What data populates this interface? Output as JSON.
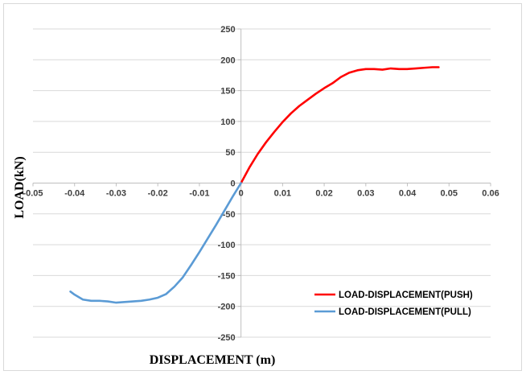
{
  "chart_data": {
    "type": "line",
    "title": "",
    "xlabel": "DISPLACEMENT (m)",
    "ylabel": "LOAD(kN)",
    "xlim": [
      -0.05,
      0.06
    ],
    "ylim": [
      -250,
      250
    ],
    "x_ticks": [
      -0.05,
      -0.04,
      -0.03,
      -0.02,
      -0.01,
      0,
      0.01,
      0.02,
      0.03,
      0.04,
      0.05,
      0.06
    ],
    "x_tick_labels": [
      "-0.05",
      "-0.04",
      "-0.03",
      "-0.02",
      "-0.01",
      "0",
      "0.01",
      "0.02",
      "0.03",
      "0.04",
      "0.05",
      "0.06"
    ],
    "y_ticks": [
      -250,
      -200,
      -150,
      -100,
      -50,
      0,
      50,
      100,
      150,
      200,
      250
    ],
    "y_tick_labels": [
      "-250",
      "-200",
      "-150",
      "-100",
      "-50",
      "0",
      "50",
      "100",
      "150",
      "200",
      "250"
    ],
    "grid": "horizontal",
    "legend_position": "bottom-right",
    "series": [
      {
        "name": "LOAD-DISPLACEMENT(PUSH)",
        "color": "#ff0000",
        "x": [
          0,
          0.002,
          0.004,
          0.006,
          0.008,
          0.01,
          0.012,
          0.014,
          0.016,
          0.018,
          0.02,
          0.022,
          0.024,
          0.026,
          0.028,
          0.03,
          0.032,
          0.034,
          0.036,
          0.038,
          0.04,
          0.042,
          0.044,
          0.046,
          0.0475
        ],
        "y": [
          0,
          25,
          47,
          66,
          83,
          99,
          113,
          125,
          135,
          145,
          154,
          162,
          172,
          179,
          183,
          185,
          185,
          184,
          186,
          185,
          185,
          186,
          187,
          188,
          188
        ]
      },
      {
        "name": "LOAD-DISPLACEMENT(PULL)",
        "color": "#5b9bd5",
        "x": [
          0,
          -0.002,
          -0.004,
          -0.006,
          -0.008,
          -0.01,
          -0.012,
          -0.014,
          -0.016,
          -0.018,
          -0.02,
          -0.022,
          -0.024,
          -0.026,
          -0.028,
          -0.03,
          -0.032,
          -0.034,
          -0.036,
          -0.038,
          -0.04,
          -0.041
        ],
        "y": [
          0,
          -22,
          -45,
          -68,
          -90,
          -112,
          -133,
          -153,
          -168,
          -180,
          -186,
          -189,
          -191,
          -192,
          -193,
          -194,
          -192,
          -191,
          -191,
          -189,
          -181,
          -176
        ]
      }
    ]
  }
}
